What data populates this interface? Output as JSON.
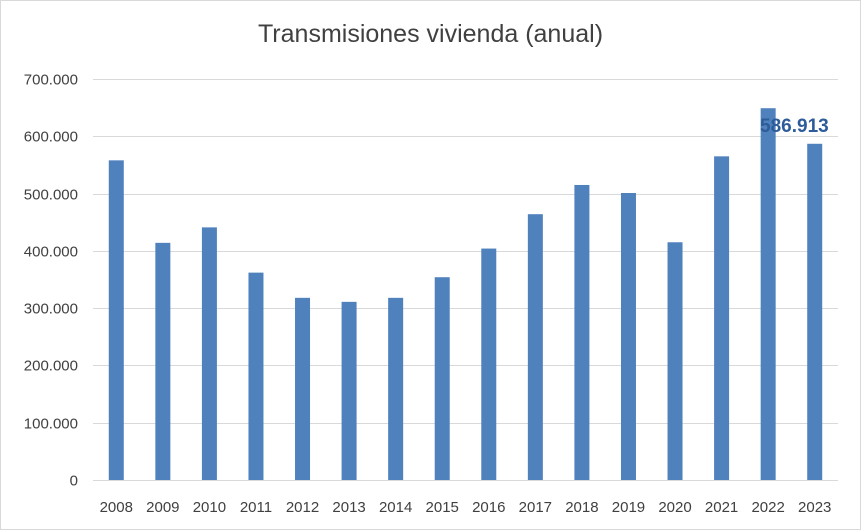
{
  "colors": {
    "bar": "#4f81bd",
    "grid": "#d9d9d9",
    "text": "#404040",
    "highlight_label": "#2e5c9a"
  },
  "chart_data": {
    "type": "bar",
    "title": "Transmisiones vivienda (anual)",
    "xlabel": "",
    "ylabel": "",
    "ylim": [
      0,
      700000
    ],
    "grid": true,
    "y_ticks": [
      0,
      100000,
      200000,
      300000,
      400000,
      500000,
      600000,
      700000
    ],
    "y_tick_labels": [
      "0",
      "100.000",
      "200.000",
      "300.000",
      "400.000",
      "500.000",
      "600.000",
      "700.000"
    ],
    "categories": [
      "2008",
      "2009",
      "2010",
      "2011",
      "2012",
      "2013",
      "2014",
      "2015",
      "2016",
      "2017",
      "2018",
      "2019",
      "2020",
      "2021",
      "2022",
      "2023"
    ],
    "values": [
      558000,
      414000,
      441000,
      362000,
      318000,
      311000,
      318000,
      354000,
      404000,
      464000,
      515000,
      501000,
      415000,
      565000,
      649000,
      586913
    ],
    "data_labels": [
      {
        "category": "2023",
        "text": "586.913"
      }
    ]
  }
}
